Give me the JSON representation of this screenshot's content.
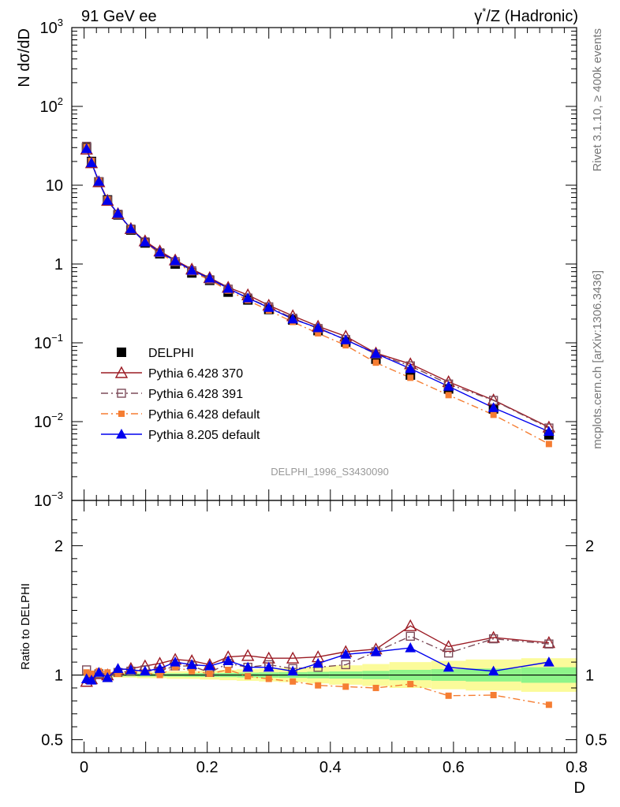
{
  "header": {
    "left_label": "91 GeV ee",
    "right_label_prefix": "γ",
    "right_label_sup": "*",
    "right_label_suffix": "/Z (Hadronic)"
  },
  "side_labels": {
    "rivet": "Rivet 3.1.10, ≥ 400k events",
    "mcplots": "mcplots.cern.ch [arXiv:1306.3436]"
  },
  "watermark": "DELPHI_1996_S3430090",
  "chart_data": [
    {
      "type": "line",
      "panel": "main",
      "ylabel": "N dσ/dD",
      "xlabel": "D",
      "yscale": "log",
      "ylim": [
        0.001,
        1000
      ],
      "xlim": [
        -0.02,
        0.8
      ],
      "y_tick_labels": [
        {
          "value": 0.001,
          "base": "10",
          "exp": "−3"
        },
        {
          "value": 0.01,
          "base": "10",
          "exp": "−2"
        },
        {
          "value": 0.1,
          "base": "10",
          "exp": "−1"
        },
        {
          "value": 1,
          "base": "1",
          "exp": ""
        },
        {
          "value": 10,
          "base": "10",
          "exp": ""
        },
        {
          "value": 100,
          "base": "10",
          "exp": "2"
        },
        {
          "value": 1000,
          "base": "10",
          "exp": "3"
        }
      ],
      "x": [
        0.004,
        0.012,
        0.024,
        0.038,
        0.055,
        0.076,
        0.099,
        0.123,
        0.148,
        0.175,
        0.204,
        0.234,
        0.266,
        0.3,
        0.339,
        0.38,
        0.425,
        0.474,
        0.53,
        0.592,
        0.665,
        0.755
      ],
      "series": [
        {
          "name": "DELPHI",
          "style": "data",
          "color": "#000000",
          "values": [
            30,
            20,
            11,
            6.5,
            4.2,
            2.7,
            1.85,
            1.35,
            1.0,
            0.77,
            0.62,
            0.44,
            0.35,
            0.265,
            0.195,
            0.143,
            0.102,
            0.062,
            0.039,
            0.026,
            0.0145,
            0.0068
          ]
        },
        {
          "name": "Pythia 6.428 370",
          "style": "open-triangle-solid",
          "color": "#9b1b24",
          "values": [
            28.6,
            19.2,
            11.0,
            6.4,
            4.34,
            2.81,
            1.96,
            1.46,
            1.12,
            0.86,
            0.67,
            0.505,
            0.405,
            0.299,
            0.22,
            0.162,
            0.121,
            0.074,
            0.054,
            0.032,
            0.0188,
            0.0085
          ]
        },
        {
          "name": "Pythia 6.428 391",
          "style": "open-square-dashdot",
          "color": "#7d4c5a",
          "values": [
            31.2,
            19.6,
            11.1,
            6.4,
            4.28,
            2.78,
            1.91,
            1.39,
            1.07,
            0.82,
            0.632,
            0.48,
            0.37,
            0.286,
            0.205,
            0.152,
            0.11,
            0.072,
            0.051,
            0.03,
            0.0186,
            0.0083
          ]
        },
        {
          "name": "Pythia 6.428 default",
          "style": "filled-square-dashdot",
          "color": "#f57d32",
          "values": [
            30.6,
            20.2,
            11.3,
            6.6,
            4.26,
            2.79,
            1.89,
            1.35,
            1.06,
            0.79,
            0.63,
            0.46,
            0.347,
            0.257,
            0.184,
            0.132,
            0.093,
            0.056,
            0.036,
            0.0217,
            0.0122,
            0.0052
          ]
        },
        {
          "name": "Pythia 8.205 default",
          "style": "filled-triangle-solid",
          "color": "#0000ee",
          "values": [
            29,
            19.2,
            11.2,
            6.4,
            4.4,
            2.8,
            1.9,
            1.41,
            1.1,
            0.83,
            0.66,
            0.49,
            0.37,
            0.28,
            0.2,
            0.155,
            0.109,
            0.073,
            0.047,
            0.028,
            0.015,
            0.0075
          ]
        }
      ]
    },
    {
      "type": "line",
      "panel": "ratio",
      "ylabel": "Ratio to DELPHI",
      "xlabel": "D",
      "ylim": [
        0.4,
        2.35
      ],
      "y_tick_labels": [
        {
          "value": 0.5,
          "label": "0.5"
        },
        {
          "value": 1,
          "label": "1"
        },
        {
          "value": 2,
          "label": "2"
        }
      ],
      "x_tick_labels": [
        {
          "value": 0,
          "label": "0"
        },
        {
          "value": 0.2,
          "label": "0.2"
        },
        {
          "value": 0.4,
          "label": "0.4"
        },
        {
          "value": 0.6,
          "label": "0.6"
        },
        {
          "value": 0.8,
          "label": "0.8"
        }
      ],
      "bin_edges": [
        0,
        0.008,
        0.016,
        0.032,
        0.044,
        0.066,
        0.086,
        0.112,
        0.134,
        0.162,
        0.188,
        0.22,
        0.248,
        0.284,
        0.316,
        0.362,
        0.398,
        0.452,
        0.496,
        0.564,
        0.62,
        0.71,
        0.8
      ],
      "stat_band": [
        0.01,
        0.01,
        0.01,
        0.01,
        0.01,
        0.01,
        0.012,
        0.012,
        0.013,
        0.014,
        0.015,
        0.016,
        0.018,
        0.02,
        0.022,
        0.025,
        0.028,
        0.032,
        0.04,
        0.045,
        0.05,
        0.06
      ],
      "total_band": [
        0.02,
        0.02,
        0.02,
        0.02,
        0.02,
        0.02,
        0.025,
        0.025,
        0.03,
        0.03,
        0.035,
        0.04,
        0.045,
        0.05,
        0.055,
        0.065,
        0.075,
        0.085,
        0.1,
        0.11,
        0.12,
        0.13
      ],
      "series": [
        {
          "name": "Pythia 6.428 370",
          "values": [
            0.95,
            0.97,
            1.01,
            1.0,
            1.04,
            1.05,
            1.07,
            1.09,
            1.12,
            1.11,
            1.08,
            1.14,
            1.15,
            1.13,
            1.13,
            1.14,
            1.18,
            1.2,
            1.38,
            1.22,
            1.29,
            1.25
          ]
        },
        {
          "name": "Pythia 6.428 391",
          "values": [
            1.04,
            0.98,
            1.01,
            0.98,
            1.02,
            1.03,
            1.04,
            1.03,
            1.07,
            1.07,
            1.02,
            1.09,
            1.06,
            1.08,
            1.05,
            1.06,
            1.08,
            1.18,
            1.3,
            1.17,
            1.28,
            1.24
          ]
        },
        {
          "name": "Pythia 6.428 default",
          "values": [
            1.02,
            1.01,
            1.03,
            1.02,
            1.01,
            1.03,
            1.02,
            1.0,
            1.06,
            1.03,
            1.01,
            1.04,
            0.99,
            0.97,
            0.95,
            0.92,
            0.91,
            0.9,
            0.93,
            0.84,
            0.845,
            0.77
          ]
        },
        {
          "name": "Pythia 8.205 default",
          "values": [
            0.97,
            0.96,
            1.02,
            0.98,
            1.05,
            1.04,
            1.03,
            1.05,
            1.1,
            1.08,
            1.07,
            1.11,
            1.06,
            1.06,
            1.03,
            1.09,
            1.16,
            1.18,
            1.21,
            1.06,
            1.03,
            1.1
          ]
        }
      ]
    }
  ]
}
